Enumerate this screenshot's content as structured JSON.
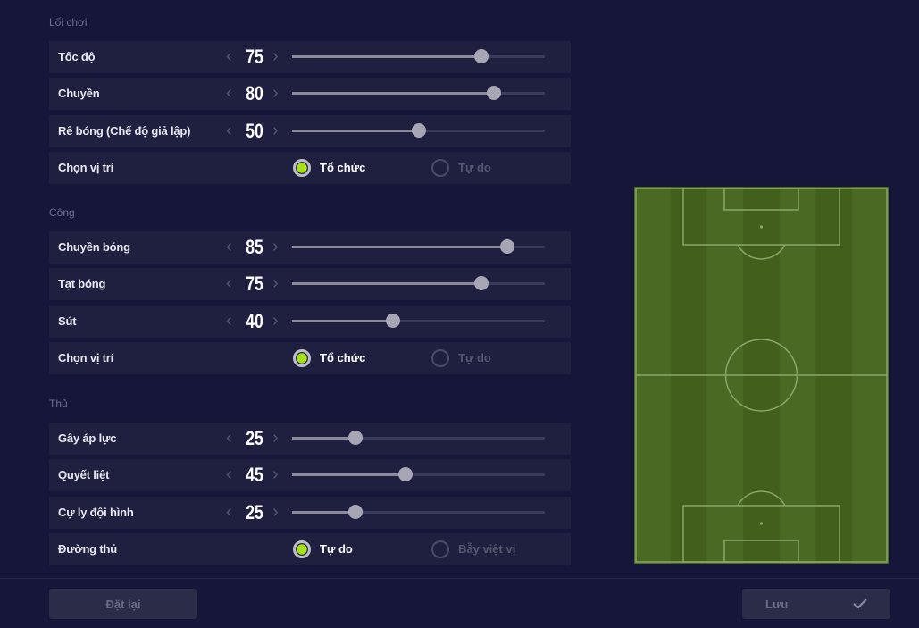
{
  "sections": [
    {
      "title": "Lối chơi",
      "top": 25,
      "rows": [
        {
          "label": "Tốc độ",
          "value": 75
        },
        {
          "label": "Chuyền",
          "value": 80
        },
        {
          "label": "Rê bóng (Chế độ giả lập)",
          "value": 50
        },
        {
          "label": "Chọn vị trí",
          "options": [
            "Tổ chức",
            "Tự do"
          ],
          "selected": 0
        }
      ]
    },
    {
      "title": "Công",
      "rows": [
        {
          "label": "Chuyền bóng",
          "value": 85
        },
        {
          "label": "Tạt bóng",
          "value": 75
        },
        {
          "label": "Sút",
          "value": 40
        },
        {
          "label": "Chọn vị trí",
          "options": [
            "Tổ chức",
            "Tự do"
          ],
          "selected": 0
        }
      ]
    },
    {
      "title": "Thủ",
      "rows": [
        {
          "label": "Gây áp lực",
          "value": 25
        },
        {
          "label": "Quyết liệt",
          "value": 45
        },
        {
          "label": "Cự ly đội hình",
          "value": 25
        },
        {
          "label": "Đường thủ",
          "options": [
            "Tự do",
            "Bẫy việt vị"
          ],
          "selected": 0
        }
      ]
    }
  ],
  "slider_max": 100,
  "icons": {
    "decrease": "chevron-left-icon",
    "increase": "chevron-right-icon",
    "save": "check-icon"
  },
  "colors": {
    "accent": "#a6e01a",
    "pitch": "#48651f"
  },
  "footer": {
    "reset_label": "Đặt lại",
    "save_label": "Lưu"
  }
}
